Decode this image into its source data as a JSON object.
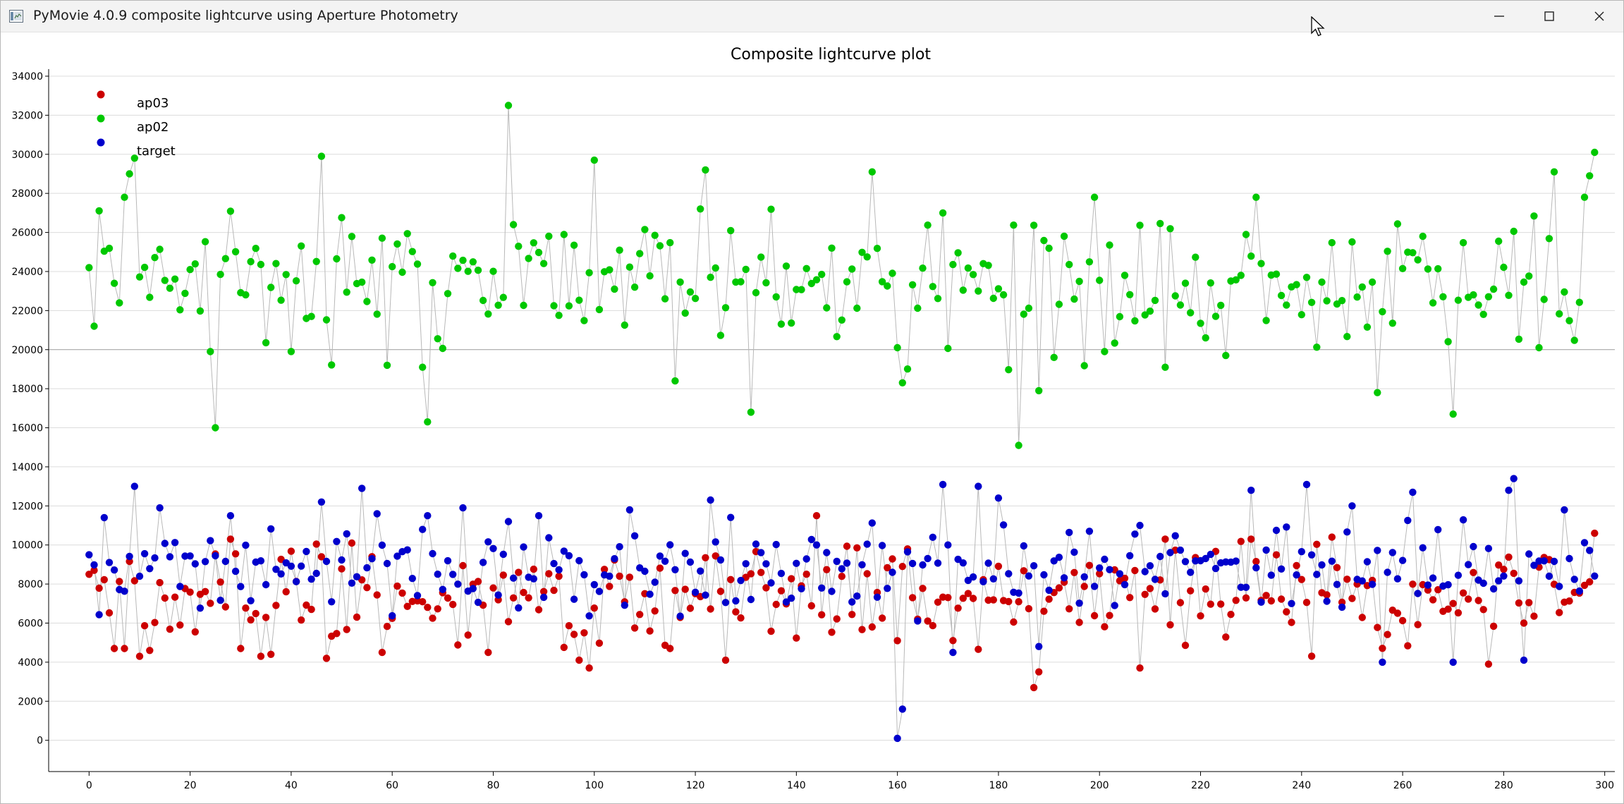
{
  "window": {
    "title": "PyMovie 4.0.9 composite lightcurve using Aperture Photometry",
    "controls": {
      "minimize": "minimize-icon",
      "maximize": "maximize-icon",
      "close": "close-icon"
    }
  },
  "chart_data": {
    "type": "scatter",
    "title": "Composite lightcurve plot",
    "xlabel": "",
    "ylabel": "",
    "xlim": [
      -8,
      302
    ],
    "ylim": [
      -1600,
      34000
    ],
    "x_ticks": [
      "0",
      "20",
      "40",
      "60",
      "80",
      "100",
      "120",
      "140",
      "160",
      "180",
      "200",
      "220",
      "240",
      "260",
      "280",
      "300"
    ],
    "y_ticks": [
      "0",
      "2000",
      "4000",
      "6000",
      "8000",
      "10000",
      "12000",
      "14000",
      "16000",
      "18000",
      "20000",
      "22000",
      "24000",
      "26000",
      "28000",
      "30000",
      "32000",
      "34000"
    ],
    "grid": true,
    "legend_position": "top-left",
    "connect_points": true,
    "series": [
      {
        "name": "ap03",
        "color": "#cc0000",
        "mean": 7400,
        "spread": 2300,
        "seed": 11,
        "overrides": [
          [
            0,
            8500
          ],
          [
            1,
            8700
          ],
          [
            5,
            4700
          ],
          [
            7,
            4700
          ],
          [
            10,
            4300
          ],
          [
            12,
            4600
          ],
          [
            18,
            5900
          ],
          [
            28,
            10300
          ],
          [
            30,
            4700
          ],
          [
            34,
            4300
          ],
          [
            36,
            4400
          ],
          [
            47,
            4200
          ],
          [
            58,
            4500
          ],
          [
            79,
            4500
          ],
          [
            97,
            4100
          ],
          [
            99,
            3700
          ],
          [
            115,
            4700
          ],
          [
            126,
            4100
          ],
          [
            144,
            11500
          ],
          [
            155,
            5800
          ],
          [
            160,
            5100
          ],
          [
            161,
            8900
          ],
          [
            162,
            9800
          ],
          [
            187,
            2700
          ],
          [
            188,
            3500
          ],
          [
            208,
            3700
          ],
          [
            213,
            10300
          ],
          [
            230,
            10300
          ],
          [
            246,
            10400
          ],
          [
            277,
            3900
          ],
          [
            298,
            10600
          ]
        ]
      },
      {
        "name": "ap02",
        "color": "#00c800",
        "mean": 23200,
        "spread": 3300,
        "seed": 23,
        "overrides": [
          [
            0,
            24200
          ],
          [
            1,
            21200
          ],
          [
            7,
            27800
          ],
          [
            8,
            29000
          ],
          [
            9,
            29800
          ],
          [
            24,
            19900
          ],
          [
            25,
            16000
          ],
          [
            46,
            29900
          ],
          [
            66,
            19100
          ],
          [
            67,
            16300
          ],
          [
            83,
            32500
          ],
          [
            84,
            26400
          ],
          [
            100,
            29700
          ],
          [
            116,
            18400
          ],
          [
            121,
            27200
          ],
          [
            122,
            29200
          ],
          [
            131,
            16800
          ],
          [
            155,
            29100
          ],
          [
            160,
            20100
          ],
          [
            161,
            18300
          ],
          [
            169,
            27000
          ],
          [
            184,
            15100
          ],
          [
            188,
            17900
          ],
          [
            191,
            19600
          ],
          [
            199,
            27800
          ],
          [
            201,
            19900
          ],
          [
            213,
            19100
          ],
          [
            225,
            19700
          ],
          [
            231,
            27800
          ],
          [
            255,
            17800
          ],
          [
            270,
            16700
          ],
          [
            287,
            20100
          ],
          [
            290,
            29100
          ],
          [
            296,
            27800
          ],
          [
            297,
            28900
          ],
          [
            298,
            30100
          ]
        ]
      },
      {
        "name": "target",
        "color": "#0000cc",
        "mean": 8800,
        "spread": 2000,
        "seed": 37,
        "overrides": [
          [
            0,
            9500
          ],
          [
            3,
            11400
          ],
          [
            9,
            13000
          ],
          [
            14,
            11900
          ],
          [
            28,
            11500
          ],
          [
            46,
            12200
          ],
          [
            54,
            12900
          ],
          [
            57,
            11600
          ],
          [
            67,
            11500
          ],
          [
            74,
            11900
          ],
          [
            83,
            11200
          ],
          [
            107,
            11800
          ],
          [
            123,
            12300
          ],
          [
            144,
            10000
          ],
          [
            159,
            8600
          ],
          [
            160,
            100
          ],
          [
            161,
            1600
          ],
          [
            169,
            13100
          ],
          [
            170,
            10000
          ],
          [
            171,
            4500
          ],
          [
            176,
            13000
          ],
          [
            180,
            12400
          ],
          [
            188,
            4800
          ],
          [
            208,
            11000
          ],
          [
            230,
            12800
          ],
          [
            241,
            13100
          ],
          [
            250,
            12000
          ],
          [
            256,
            4000
          ],
          [
            262,
            12700
          ],
          [
            270,
            4000
          ],
          [
            281,
            12800
          ],
          [
            282,
            13400
          ],
          [
            284,
            4100
          ],
          [
            292,
            11800
          ]
        ]
      }
    ]
  }
}
